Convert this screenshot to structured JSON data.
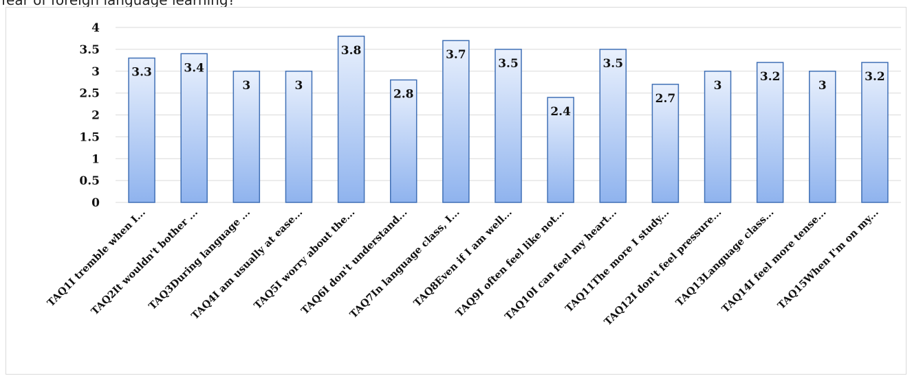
{
  "caption": "fear of foreign language learning?",
  "chart_data": {
    "type": "bar",
    "categories": [
      "TAQ1I tremble when I...",
      "TAQ2It wouldn't bother ...",
      "TAQ3During language ...",
      "TAQ4I am usually at ease...",
      "TAQ5I worry about the...",
      "TAQ6I don't understand...",
      "TAQ7In language class, I...",
      "TAQ8Even if I am well...",
      "TAQ9I often feel like not...",
      "TAQ10I can feel my heart...",
      "TAQ11The more I study...",
      "TAQ12I don't feel pressure...",
      "TAQ13Language class...",
      "TAQ14I feel more tense...",
      "TAQ15When I'm on my..."
    ],
    "values": [
      3.3,
      3.4,
      3,
      3,
      3.8,
      2.8,
      3.7,
      3.5,
      2.4,
      3.5,
      2.7,
      3,
      3.2,
      3,
      3.2
    ],
    "data_labels": [
      "3.3",
      "3.4",
      "3",
      "3",
      "3.8",
      "2.8",
      "3.7",
      "3.5",
      "2.4",
      "3.5",
      "2.7",
      "3",
      "3.2",
      "3",
      "3.2"
    ],
    "yticks": [
      "0",
      "0.5",
      "1",
      "1.5",
      "2",
      "2.5",
      "3",
      "3.5",
      "4"
    ],
    "ylim": [
      0,
      4
    ],
    "grid": true,
    "colors": {
      "bar_top": "#eaf1fd",
      "bar_bottom": "#8fb3ee",
      "bar_border": "#3f6fb5",
      "grid": "#d9d9d9"
    }
  }
}
